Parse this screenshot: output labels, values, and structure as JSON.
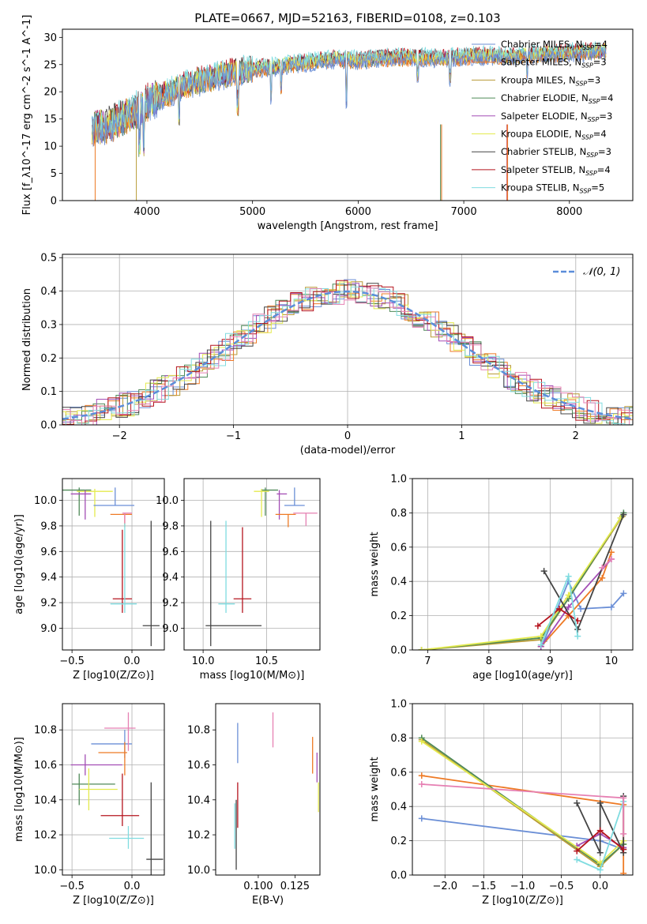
{
  "chart_data": [
    {
      "type": "line",
      "title": "PLATE=0667, MJD=52163, FIBERID=0108, z=0.103",
      "xlabel": "wavelength [Angstrom, rest frame]",
      "ylabel": "Flux [f_λ10^-17 erg cm^-2 s^-1 A^-1]",
      "xlim": [
        3200,
        8600
      ],
      "ylim": [
        0,
        31.5
      ],
      "xticks": [
        4000,
        5000,
        6000,
        7000,
        8000
      ],
      "yticks": [
        0,
        5,
        10,
        15,
        20,
        25,
        30
      ],
      "grid": false,
      "legend_position": "top-right",
      "observed_spectrum": {
        "x": [
          3480,
          3600,
          3700,
          3800,
          3900,
          4000,
          4100,
          4200,
          4400,
          4600,
          4800,
          5000,
          5200,
          5400,
          5600,
          5800,
          6000,
          6200,
          6400,
          6600,
          6800,
          7000,
          7200,
          7400,
          7600,
          7800,
          8000,
          8200,
          8350
        ],
        "y": [
          13.2,
          13.8,
          14.5,
          15.5,
          16.5,
          18.0,
          19.0,
          19.8,
          21.5,
          22.5,
          23.5,
          24.2,
          24.6,
          25.2,
          25.6,
          26.0,
          25.8,
          26.2,
          26.3,
          26.4,
          26.2,
          26.5,
          26.6,
          26.5,
          26.8,
          27.0,
          27.2,
          27.4,
          27.5
        ]
      },
      "series": [
        {
          "name": "Chabrier MILES",
          "n_ssp": "4",
          "color": "#6b8fd6"
        },
        {
          "name": "Salpeter MILES",
          "n_ssp": "3",
          "color": "#ee7a25"
        },
        {
          "name": "Kroupa MILES",
          "n_ssp": "3",
          "color": "#b89a36"
        },
        {
          "name": "Chabrier ELODIE",
          "n_ssp": "4",
          "color": "#4f8a58"
        },
        {
          "name": "Salpeter ELODIE",
          "n_ssp": "3",
          "color": "#a34db5"
        },
        {
          "name": "Kroupa ELODIE",
          "n_ssp": "4",
          "color": "#e4ea4e"
        },
        {
          "name": "Chabrier STELIB",
          "n_ssp": "3",
          "color": "#444444"
        },
        {
          "name": "Salpeter STELIB",
          "n_ssp": "4",
          "color": "#b5141e"
        },
        {
          "name": "Kroupa STELIB",
          "n_ssp": "5",
          "color": "#80dce0"
        }
      ]
    },
    {
      "type": "line",
      "xlabel": "(data-model)/error",
      "ylabel": "Normed distribution",
      "xlim": [
        -2.5,
        2.5
      ],
      "ylim": [
        0,
        0.51
      ],
      "xticks": [
        -2,
        -1,
        0,
        1,
        2
      ],
      "yticks": [
        0.0,
        0.1,
        0.2,
        0.3,
        0.4,
        0.5
      ],
      "grid": true,
      "legend_position": "top-right",
      "legend_label": "𝒩(0, 1)",
      "reference_curve": {
        "name": "𝒩(0, 1)",
        "mu": 0,
        "sigma": 1,
        "style": "dashed",
        "color": "#5b8dd9"
      },
      "histogram_bin_width": 0.1,
      "histogram_step_colors": [
        "#6b8fd6",
        "#ee7a25",
        "#b89a36",
        "#4f8a58",
        "#a34db5",
        "#e4ea4e",
        "#444444",
        "#b5141e",
        "#80dce0",
        "#e680b3"
      ]
    },
    {
      "type": "scatter",
      "xlabel": "Z [log10(Z/Z⊙)]",
      "ylabel": "age [log10(age/yr)]",
      "xlim": [
        -0.58,
        0.27
      ],
      "ylim": [
        8.83,
        10.17
      ],
      "xticks": [
        -0.5,
        0.0
      ],
      "yticks": [
        9.0,
        9.2,
        9.4,
        9.6,
        9.8,
        10.0
      ],
      "grid": true,
      "points": [
        {
          "color": "#4f8a58",
          "x": -0.44,
          "y": 10.08,
          "xerr": [
            0.14,
            0.1
          ],
          "yerr": [
            0.2,
            0.02
          ]
        },
        {
          "color": "#e4ea4e",
          "x": -0.31,
          "y": 10.07,
          "xerr": [
            0.15,
            0.15
          ],
          "yerr": [
            0.2,
            0.02
          ]
        },
        {
          "color": "#a34db5",
          "x": -0.39,
          "y": 10.05,
          "xerr": [
            0.12,
            0.05
          ],
          "yerr": [
            0.2,
            0.03
          ]
        },
        {
          "color": "#6b8fd6",
          "x": -0.14,
          "y": 9.96,
          "xerr": [
            0.18,
            0.16
          ],
          "yerr": [
            0.0,
            0.14
          ]
        },
        {
          "color": "#ee7a25",
          "x": -0.06,
          "y": 9.89,
          "xerr": [
            0.12,
            0.06
          ],
          "yerr": [
            0.1,
            0.0
          ]
        },
        {
          "color": "#e680b3",
          "x": -0.06,
          "y": 9.9,
          "xerr": [
            0.02,
            0.06
          ],
          "yerr": [
            0.08,
            0.0
          ]
        },
        {
          "color": "#b5141e",
          "x": -0.08,
          "y": 9.23,
          "xerr": [
            0.08,
            0.08
          ],
          "yerr": [
            0.11,
            0.54
          ]
        },
        {
          "color": "#80dce0",
          "x": -0.06,
          "y": 9.19,
          "xerr": [
            0.12,
            0.1
          ],
          "yerr": [
            0.07,
            0.63
          ]
        },
        {
          "color": "#444444",
          "x": 0.16,
          "y": 9.02,
          "xerr": [
            0.07,
            0.07
          ],
          "yerr": [
            0.16,
            0.82
          ]
        }
      ]
    },
    {
      "type": "scatter",
      "xlabel": "mass [log10(M/M⊙)]",
      "ylabel": "",
      "xlim": [
        9.85,
        10.92
      ],
      "ylim": [
        8.83,
        10.17
      ],
      "xticks": [
        10.0,
        10.5
      ],
      "yticks": [
        9.0,
        9.2,
        9.4,
        9.6,
        9.8,
        10.0
      ],
      "grid": true,
      "points": [
        {
          "color": "#4f8a58",
          "x": 10.49,
          "y": 10.08,
          "xerr": [
            0.03,
            0.1
          ],
          "yerr": [
            0.2,
            0.02
          ]
        },
        {
          "color": "#e4ea4e",
          "x": 10.46,
          "y": 10.07,
          "xerr": [
            0.06,
            0.06
          ],
          "yerr": [
            0.2,
            0.02
          ]
        },
        {
          "color": "#a34db5",
          "x": 10.6,
          "y": 10.05,
          "xerr": [
            0.02,
            0.06
          ],
          "yerr": [
            0.2,
            0.03
          ]
        },
        {
          "color": "#6b8fd6",
          "x": 10.72,
          "y": 9.96,
          "xerr": [
            0.08,
            0.08
          ],
          "yerr": [
            0.0,
            0.14
          ]
        },
        {
          "color": "#ee7a25",
          "x": 10.67,
          "y": 9.89,
          "xerr": [
            0.1,
            0.06
          ],
          "yerr": [
            0.1,
            0.0
          ]
        },
        {
          "color": "#e680b3",
          "x": 10.81,
          "y": 9.9,
          "xerr": [
            0.1,
            0.09
          ],
          "yerr": [
            0.1,
            0.0
          ]
        },
        {
          "color": "#b5141e",
          "x": 10.31,
          "y": 9.23,
          "xerr": [
            0.07,
            0.07
          ],
          "yerr": [
            0.11,
            0.56
          ]
        },
        {
          "color": "#80dce0",
          "x": 10.18,
          "y": 9.19,
          "xerr": [
            0.06,
            0.07
          ],
          "yerr": [
            0.07,
            0.65
          ]
        },
        {
          "color": "#444444",
          "x": 10.06,
          "y": 9.02,
          "xerr": [
            0.04,
            0.4
          ],
          "yerr": [
            0.16,
            0.82
          ]
        }
      ]
    },
    {
      "type": "line",
      "xlabel": "age [log10(age/yr)]",
      "ylabel": "mass weight",
      "xlim": [
        6.75,
        10.35
      ],
      "ylim": [
        0.0,
        1.0
      ],
      "xticks": [
        7,
        8,
        9,
        10
      ],
      "yticks": [
        0.0,
        0.2,
        0.4,
        0.6,
        0.8,
        1.0
      ],
      "grid": true,
      "series": [
        {
          "color": "#6b8fd6",
          "x": [
            8.9,
            9.3,
            9.5,
            10.0,
            10.2
          ],
          "y": [
            0.05,
            0.4,
            0.24,
            0.25,
            0.33
          ]
        },
        {
          "color": "#ee7a25",
          "x": [
            8.85,
            9.3,
            9.85,
            10.0
          ],
          "y": [
            0.02,
            0.2,
            0.42,
            0.57
          ]
        },
        {
          "color": "#b89a36",
          "x": [
            6.9,
            8.85,
            9.3,
            10.18
          ],
          "y": [
            0.0,
            0.06,
            0.3,
            0.78
          ]
        },
        {
          "color": "#4f8a58",
          "x": [
            6.9,
            8.85,
            9.3,
            10.2
          ],
          "y": [
            0.0,
            0.07,
            0.3,
            0.8
          ]
        },
        {
          "color": "#a34db5",
          "x": [
            8.85,
            9.3,
            10.0
          ],
          "y": [
            0.02,
            0.25,
            0.53
          ]
        },
        {
          "color": "#e4ea4e",
          "x": [
            6.9,
            8.85,
            9.3,
            10.15
          ],
          "y": [
            0.0,
            0.08,
            0.32,
            0.77
          ]
        },
        {
          "color": "#444444",
          "x": [
            8.9,
            9.45,
            10.2
          ],
          "y": [
            0.46,
            0.12,
            0.79
          ]
        },
        {
          "color": "#b5141e",
          "x": [
            8.8,
            9.15,
            9.45
          ],
          "y": [
            0.14,
            0.24,
            0.17
          ]
        },
        {
          "color": "#80dce0",
          "x": [
            8.85,
            9.3,
            9.45
          ],
          "y": [
            0.03,
            0.43,
            0.08
          ]
        },
        {
          "color": "#e680b3",
          "x": [
            9.85,
            10.0
          ],
          "y": [
            0.48,
            0.53
          ]
        }
      ]
    },
    {
      "type": "scatter",
      "xlabel": "Z [log10(Z/Z⊙)]",
      "ylabel": "mass [log10(M/M⊙)]",
      "xlim": [
        -0.58,
        0.27
      ],
      "ylim": [
        9.97,
        10.95
      ],
      "xticks": [
        -0.5,
        0.0
      ],
      "yticks": [
        10.0,
        10.2,
        10.4,
        10.6,
        10.8
      ],
      "grid": true,
      "points": [
        {
          "color": "#4f8a58",
          "x": -0.44,
          "y": 10.49,
          "xerr": [
            0.06,
            0.3
          ],
          "yerr": [
            0.12,
            0.06
          ]
        },
        {
          "color": "#e4ea4e",
          "x": -0.36,
          "y": 10.46,
          "xerr": [
            0.08,
            0.24
          ],
          "yerr": [
            0.12,
            0.12
          ]
        },
        {
          "color": "#a34db5",
          "x": -0.39,
          "y": 10.6,
          "xerr": [
            0.12,
            0.31
          ],
          "yerr": [
            0.06,
            0.06
          ]
        },
        {
          "color": "#6b8fd6",
          "x": -0.06,
          "y": 10.72,
          "xerr": [
            0.28,
            0.06
          ],
          "yerr": [
            0.08,
            0.08
          ]
        },
        {
          "color": "#ee7a25",
          "x": -0.06,
          "y": 10.67,
          "xerr": [
            0.22,
            0.02
          ],
          "yerr": [
            0.13,
            0.06
          ]
        },
        {
          "color": "#e680b3",
          "x": -0.03,
          "y": 10.81,
          "xerr": [
            0.2,
            0.06
          ],
          "yerr": [
            0.13,
            0.09
          ]
        },
        {
          "color": "#b5141e",
          "x": -0.08,
          "y": 10.31,
          "xerr": [
            0.18,
            0.14
          ],
          "yerr": [
            0.06,
            0.24
          ]
        },
        {
          "color": "#80dce0",
          "x": -0.03,
          "y": 10.18,
          "xerr": [
            0.16,
            0.13
          ],
          "yerr": [
            0.06,
            0.07
          ]
        },
        {
          "color": "#444444",
          "x": 0.16,
          "y": 10.06,
          "xerr": [
            0.04,
            0.1
          ],
          "yerr": [
            0.16,
            0.44
          ]
        }
      ]
    },
    {
      "type": "scatter",
      "xlabel": "E(B-V)",
      "ylabel": "",
      "xlim": [
        0.071,
        0.142
      ],
      "ylim": [
        9.97,
        10.95
      ],
      "xticks": [
        0.1,
        0.125
      ],
      "yticks": [
        10.0,
        10.2,
        10.4,
        10.6,
        10.8
      ],
      "grid": false,
      "points": [
        {
          "color": "#6b8fd6",
          "x": 0.086,
          "yerr": [
            10.61,
            10.84
          ]
        },
        {
          "color": "#b5141e",
          "x": 0.086,
          "yerr": [
            10.24,
            10.5
          ]
        },
        {
          "color": "#444444",
          "x": 0.085,
          "yerr": [
            10.0,
            10.4
          ]
        },
        {
          "color": "#80dce0",
          "x": 0.084,
          "yerr": [
            10.12,
            10.38
          ]
        },
        {
          "color": "#e680b3",
          "x": 0.11,
          "yerr": [
            10.7,
            10.9
          ]
        },
        {
          "color": "#ee7a25",
          "x": 0.137,
          "yerr": [
            10.55,
            10.76
          ]
        },
        {
          "color": "#a34db5",
          "x": 0.14,
          "yerr": [
            10.5,
            10.67
          ]
        },
        {
          "color": "#e4ea4e",
          "x": 0.141,
          "yerr": [
            10.33,
            10.5
          ]
        }
      ]
    },
    {
      "type": "line",
      "xlabel": "Z [log10(Z/Z⊙)]",
      "ylabel": "mass weight",
      "xlim": [
        -2.42,
        0.42
      ],
      "ylim": [
        0.0,
        1.0
      ],
      "xticks": [
        -2.0,
        -1.5,
        -1.0,
        -0.5,
        0.0
      ],
      "yticks": [
        0.0,
        0.2,
        0.4,
        0.6,
        0.8,
        1.0
      ],
      "grid": true,
      "series": [
        {
          "color": "#6b8fd6",
          "x": [
            -2.3,
            0.0,
            0.3
          ],
          "y": [
            0.33,
            0.2,
            0.15
          ]
        },
        {
          "color": "#ee7a25",
          "x": [
            -2.3,
            0.3,
            0.3
          ],
          "y": [
            0.58,
            0.41,
            0.01
          ]
        },
        {
          "color": "#b89a36",
          "x": [
            -2.3,
            0.0,
            0.3
          ],
          "y": [
            0.79,
            0.05,
            0.18
          ]
        },
        {
          "color": "#4f8a58",
          "x": [
            -2.3,
            0.0,
            0.3
          ],
          "y": [
            0.8,
            0.06,
            0.18
          ]
        },
        {
          "color": "#a34db5",
          "x": [
            -0.3,
            0.0,
            0.3
          ],
          "y": [
            0.17,
            0.24,
            0.16
          ]
        },
        {
          "color": "#e4ea4e",
          "x": [
            -2.3,
            0.0,
            0.3
          ],
          "y": [
            0.78,
            0.07,
            0.2
          ]
        },
        {
          "color": "#444444",
          "x": [
            -0.3,
            0.0,
            0.0,
            0.3,
            0.3
          ],
          "y": [
            0.42,
            0.13,
            0.42,
            0.13,
            0.46
          ]
        },
        {
          "color": "#b5141e",
          "x": [
            -0.3,
            0.0,
            0.3
          ],
          "y": [
            0.14,
            0.26,
            0.15
          ]
        },
        {
          "color": "#80dce0",
          "x": [
            -0.3,
            0.0,
            0.3
          ],
          "y": [
            0.09,
            0.03,
            0.43
          ]
        },
        {
          "color": "#e680b3",
          "x": [
            -2.3,
            0.3,
            0.3
          ],
          "y": [
            0.53,
            0.45,
            0.24
          ]
        }
      ]
    }
  ]
}
